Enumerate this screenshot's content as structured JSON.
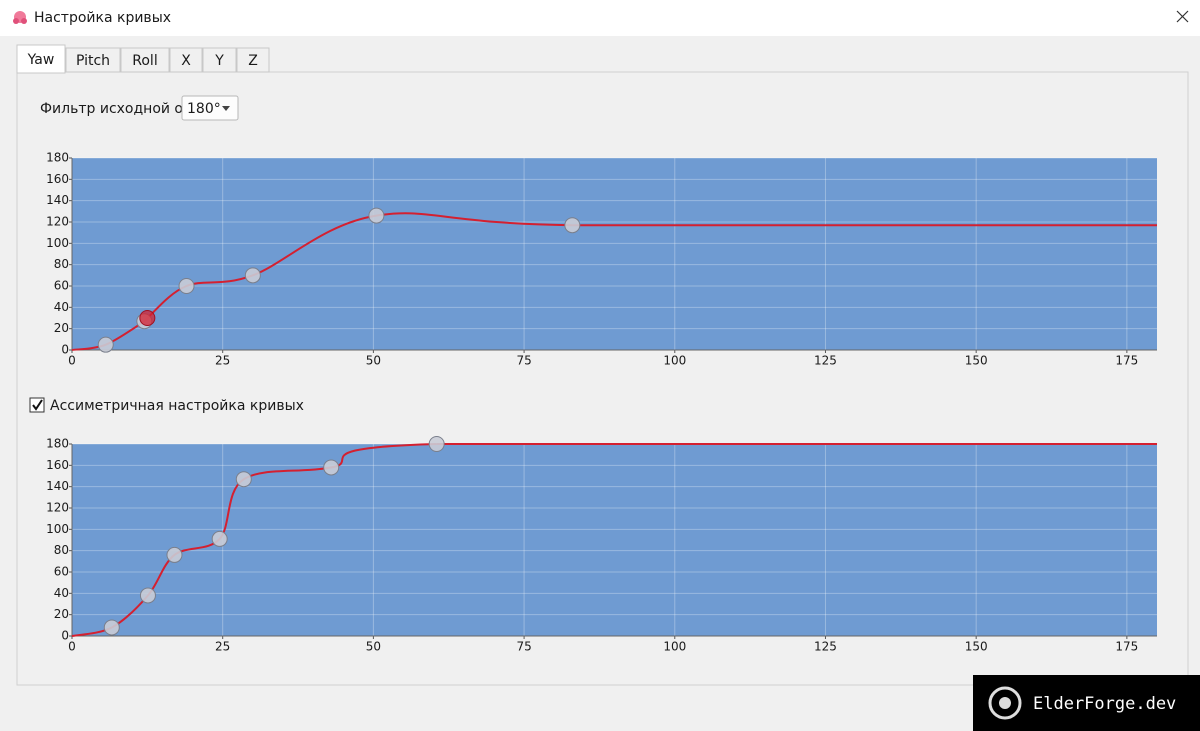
{
  "window": {
    "title": "Настройка кривых"
  },
  "tabs": {
    "items": [
      "Yaw",
      "Pitch",
      "Roll",
      "X",
      "Y",
      "Z"
    ],
    "selected": 0
  },
  "filter": {
    "label": "Фильтр исходной оси",
    "value": "180°"
  },
  "checkbox": {
    "label": "Ассиметричная настройка кривых",
    "checked": true
  },
  "watermark": {
    "text": "ElderForge.dev"
  },
  "chart_data": [
    {
      "type": "line",
      "x": [
        5.6,
        12,
        12.5,
        19,
        30,
        50.5,
        83
      ],
      "values": [
        5,
        27,
        30,
        60,
        70,
        126,
        117
      ],
      "selected": 2,
      "color": "#d42030",
      "background": "#6f9bd2",
      "grid": true,
      "xlim": [
        0,
        180
      ],
      "ylim": [
        0,
        180
      ],
      "xticks": [
        0,
        25,
        50,
        75,
        100,
        125,
        150,
        175
      ],
      "yticks": [
        0,
        20,
        40,
        60,
        80,
        100,
        120,
        140,
        160,
        180
      ]
    },
    {
      "type": "line",
      "x": [
        6.6,
        12.6,
        17,
        24.5,
        28.5,
        43,
        60.5
      ],
      "values": [
        8,
        38,
        76,
        91,
        147,
        158,
        180
      ],
      "color": "#d42030",
      "background": "#6f9bd2",
      "grid": true,
      "xlim": [
        0,
        180
      ],
      "ylim": [
        0,
        180
      ],
      "xticks": [
        0,
        25,
        50,
        75,
        100,
        125,
        150,
        175
      ],
      "yticks": [
        0,
        20,
        40,
        60,
        80,
        100,
        120,
        140,
        160,
        180
      ]
    }
  ]
}
